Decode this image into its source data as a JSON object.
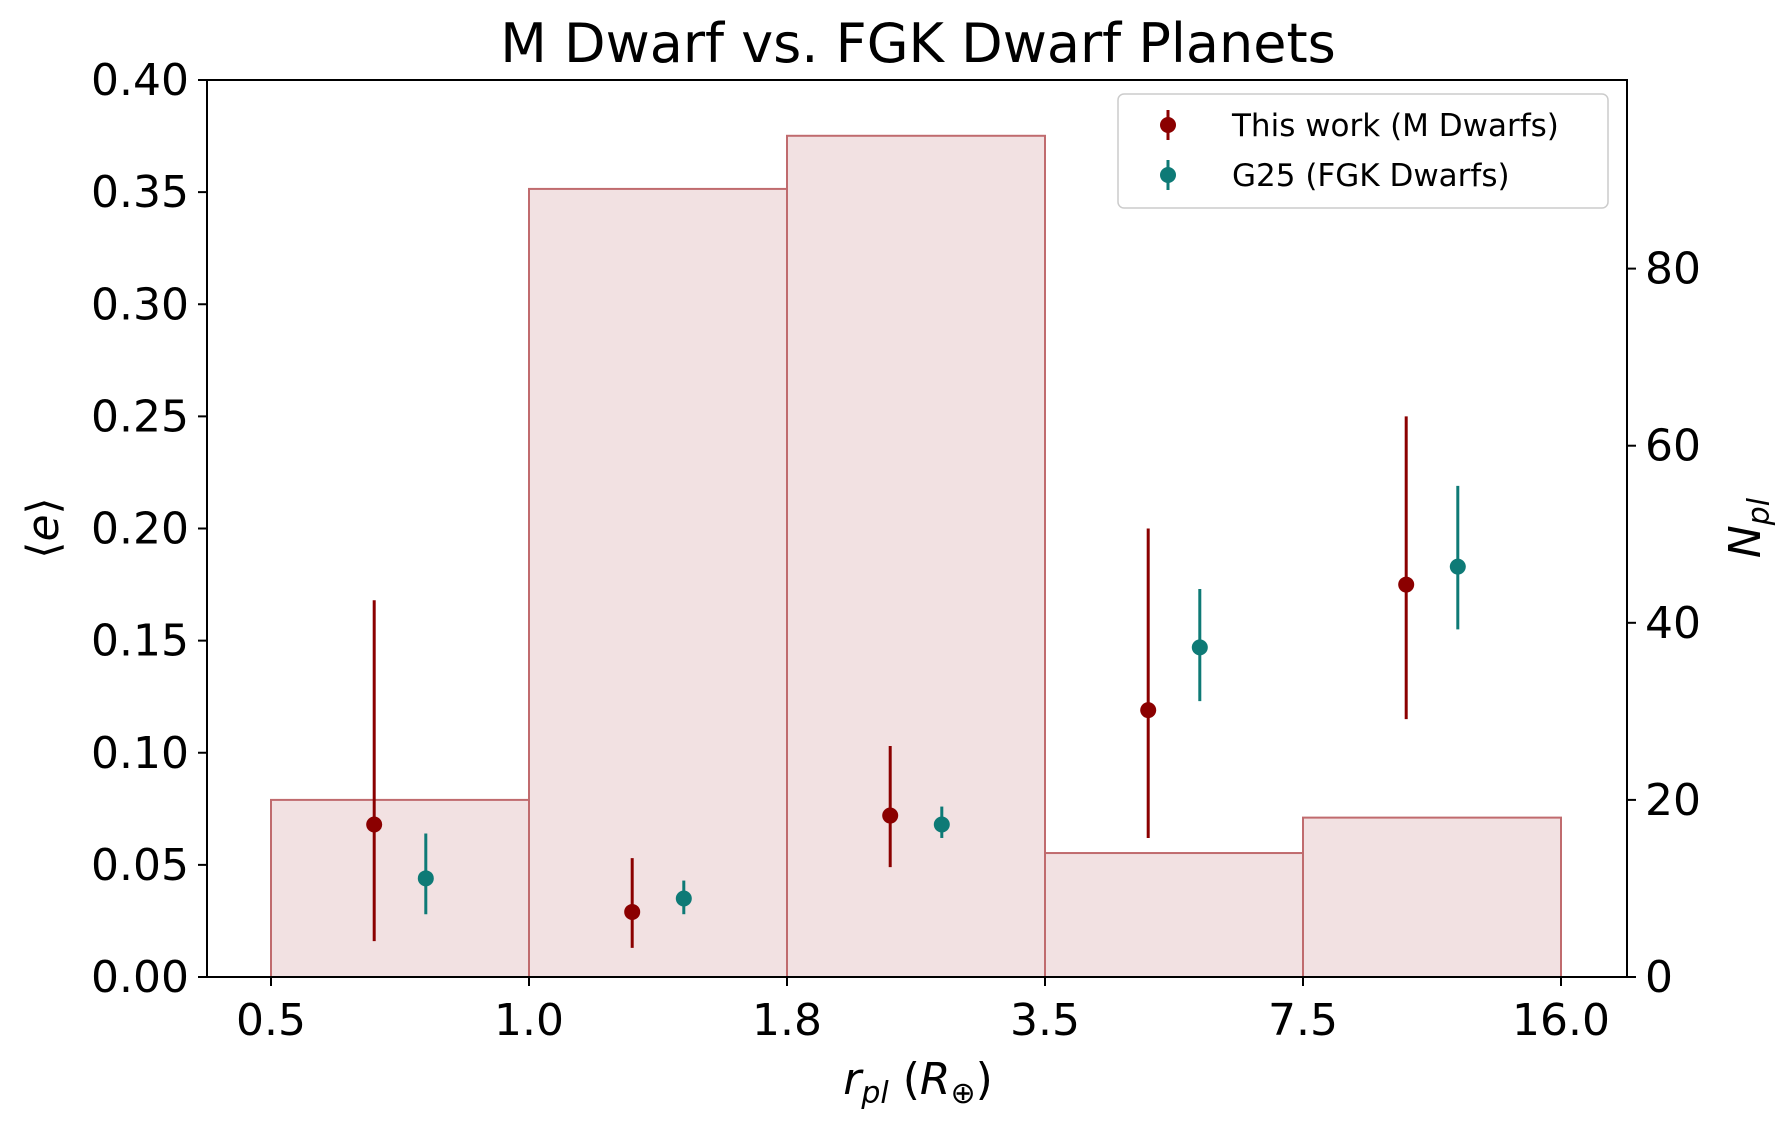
{
  "chart_data": {
    "type": "bar",
    "title": "M Dwarf vs. FGK Dwarf Planets",
    "xlabel": "r_pl (R⊕)",
    "ylabel_left": "⟨e⟩",
    "ylabel_right": "N_pl",
    "x_ticks": [
      "0.5",
      "1.0",
      "1.8",
      "3.5",
      "7.5",
      "16.0"
    ],
    "y_left_ticks": [
      "0.00",
      "0.05",
      "0.10",
      "0.15",
      "0.20",
      "0.25",
      "0.30",
      "0.35",
      "0.40"
    ],
    "y_left_lim": [
      0,
      0.4
    ],
    "y_right_ticks": [
      "0",
      "20",
      "40",
      "60",
      "80"
    ],
    "y_right_lim": [
      0,
      101.3
    ],
    "histogram": {
      "bins": [
        0.5,
        1.0,
        1.8,
        3.5,
        7.5,
        16.0
      ],
      "counts": [
        20,
        89,
        95,
        14,
        18
      ],
      "fill": "#f2e1e2",
      "edge": "#c06b6e"
    },
    "series": [
      {
        "name": "This work (M Dwarfs)",
        "color": "#8b0000",
        "positions": [
          0.4,
          0.4,
          0.4,
          0.4,
          0.4
        ],
        "values": [
          0.068,
          0.029,
          0.072,
          0.119,
          0.175
        ],
        "err_low": [
          0.016,
          0.013,
          0.049,
          0.062,
          0.115
        ],
        "err_high": [
          0.168,
          0.053,
          0.103,
          0.2,
          0.25
        ]
      },
      {
        "name": "G25 (FGK Dwarfs)",
        "color": "#0e7a76",
        "positions": [
          0.6,
          0.6,
          0.6,
          0.6,
          0.6
        ],
        "values": [
          0.044,
          0.035,
          0.068,
          0.147,
          0.183
        ],
        "err_low": [
          0.028,
          0.028,
          0.062,
          0.123,
          0.155
        ],
        "err_high": [
          0.064,
          0.043,
          0.076,
          0.173,
          0.219
        ]
      }
    ],
    "legend": [
      "This work (M Dwarfs)",
      "G25 (FGK Dwarfs)"
    ],
    "legend_position": "top-right"
  }
}
